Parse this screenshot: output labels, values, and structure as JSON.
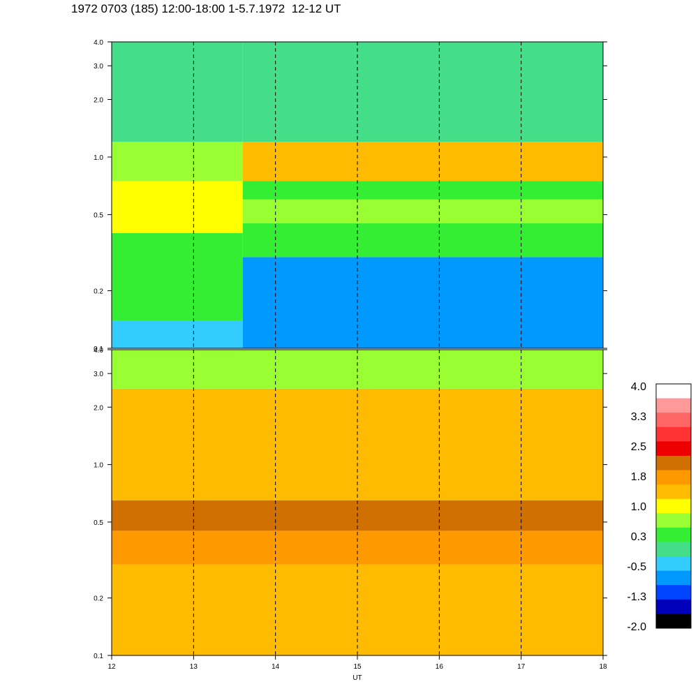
{
  "title": "1972 0703 (185) 12:00-18:00 1-5.7.1972  12-12 UT",
  "chart_data": [
    {
      "type": "heatmap",
      "panel": "upper",
      "xlim": [
        12,
        18
      ],
      "ylim": [
        0.1,
        4.0
      ],
      "yscale": "log",
      "ytick_labels": [
        "0.1",
        "0.2",
        "0.5",
        "1.0",
        "2.0",
        "3.0",
        "4.0"
      ],
      "yticks": [
        0.1,
        0.2,
        0.5,
        1.0,
        2.0,
        3.0,
        4.0
      ],
      "dashed_time_markers": [
        13,
        14,
        15,
        16,
        17
      ],
      "bands": [
        {
          "x": [
            12,
            13.6
          ],
          "y": [
            0.1,
            0.14
          ],
          "value": -0.4
        },
        {
          "x": [
            12,
            13.6
          ],
          "y": [
            0.14,
            0.4
          ],
          "value": 0.2
        },
        {
          "x": [
            12,
            13.6
          ],
          "y": [
            0.4,
            0.75
          ],
          "value": 0.9
        },
        {
          "x": [
            12,
            13.6
          ],
          "y": [
            0.75,
            1.2
          ],
          "value": 0.5
        },
        {
          "x": [
            12,
            13.6
          ],
          "y": [
            1.2,
            4.0
          ],
          "value": 0.0
        },
        {
          "x": [
            13.6,
            18
          ],
          "y": [
            0.1,
            0.3
          ],
          "value": -0.6
        },
        {
          "x": [
            13.6,
            18
          ],
          "y": [
            0.3,
            0.45
          ],
          "value": 0.3
        },
        {
          "x": [
            13.6,
            18
          ],
          "y": [
            0.45,
            0.6
          ],
          "value": 0.7
        },
        {
          "x": [
            13.6,
            18
          ],
          "y": [
            0.6,
            0.75
          ],
          "value": 0.4
        },
        {
          "x": [
            13.6,
            18
          ],
          "y": [
            0.75,
            1.2
          ],
          "value": 1.3
        },
        {
          "x": [
            13.6,
            18
          ],
          "y": [
            1.2,
            4.0
          ],
          "value": 0.0
        }
      ]
    },
    {
      "type": "heatmap",
      "panel": "lower",
      "xlim": [
        12,
        18
      ],
      "ylim": [
        0.1,
        4.0
      ],
      "yscale": "log",
      "ytick_labels": [
        "0.1",
        "0.2",
        "0.5",
        "1.0",
        "2.0",
        "3.0",
        "4.0"
      ],
      "yticks": [
        0.1,
        0.2,
        0.5,
        1.0,
        2.0,
        3.0,
        4.0
      ],
      "xtick_labels": [
        "12",
        "13",
        "14",
        "15",
        "16",
        "17",
        "18"
      ],
      "xticks": [
        12,
        13,
        14,
        15,
        16,
        17,
        18
      ],
      "xlabel": "UT",
      "dashed_time_markers": [
        13,
        14,
        15,
        16,
        17
      ],
      "bands": [
        {
          "x": [
            12,
            18
          ],
          "y": [
            0.1,
            0.3
          ],
          "value": 1.3
        },
        {
          "x": [
            12,
            18
          ],
          "y": [
            0.3,
            0.45
          ],
          "value": 1.6
        },
        {
          "x": [
            12,
            18
          ],
          "y": [
            0.45,
            0.65
          ],
          "value": 1.9
        },
        {
          "x": [
            12,
            18
          ],
          "y": [
            0.65,
            2.5
          ],
          "value": 1.4
        },
        {
          "x": [
            12,
            18
          ],
          "y": [
            2.5,
            4.0
          ],
          "value": 0.8
        }
      ]
    }
  ],
  "colorbar": {
    "labels": [
      "4.0",
      "3.3",
      "2.5",
      "1.8",
      "1.0",
      "0.3",
      "-0.5",
      "-1.3",
      "-2.0"
    ],
    "range": [
      -2.0,
      4.0
    ],
    "colors": [
      "#ffffff",
      "#ff9999",
      "#ff6666",
      "#ff3333",
      "#ee0000",
      "#d07000",
      "#ff9900",
      "#ffbb00",
      "#ffff00",
      "#99ff33",
      "#33ee33",
      "#44dd88",
      "#33ccff",
      "#0099ff",
      "#0044ff",
      "#0000bb",
      "#000000"
    ]
  }
}
